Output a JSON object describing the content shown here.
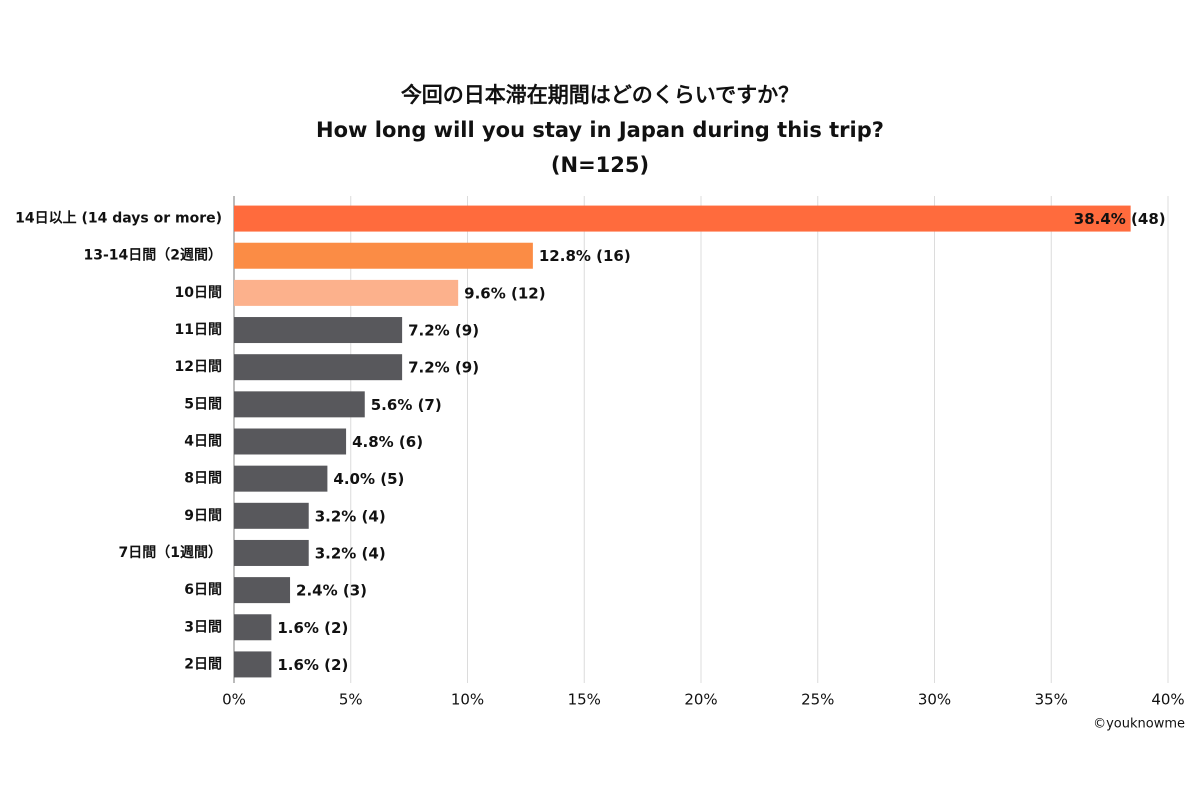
{
  "chart_data": {
    "type": "bar",
    "orientation": "horizontal",
    "title_lines": [
      "今回の日本滞在期間はどのくらいですか？",
      "How long will you stay in Japan during this trip?",
      "(N=125)"
    ],
    "categories": [
      "14日以上 (14 days or more)",
      "13-14日間（2週間）",
      "10日間",
      "11日間",
      "12日間",
      "5日間",
      "4日間",
      "8日間",
      "9日間",
      "7日間（1週間）",
      "6日間",
      "3日間",
      "2日間"
    ],
    "values": [
      38.4,
      12.8,
      9.6,
      7.2,
      7.2,
      5.6,
      4.8,
      4.0,
      3.2,
      3.2,
      2.4,
      1.6,
      1.6
    ],
    "value_labels": [
      "38.4% (48)",
      "12.8% (16)",
      "9.6% (12)",
      "7.2% (9)",
      "7.2% (9)",
      "5.6% (7)",
      "4.8% (6)",
      "4.0% (5)",
      "3.2% (4)",
      "3.2% (4)",
      "2.4% (3)",
      "1.6% (2)",
      "1.6% (2)"
    ],
    "colors": [
      "#ff6b3d",
      "#fb8c45",
      "#fcb18c",
      "#58585c",
      "#58585c",
      "#58585c",
      "#58585c",
      "#58585c",
      "#58585c",
      "#58585c",
      "#58585c",
      "#58585c",
      "#58585c"
    ],
    "xlim": [
      0,
      40
    ],
    "xticks": [
      {
        "value": 0,
        "label": "0%"
      },
      {
        "value": 5,
        "label": "5%"
      },
      {
        "value": 10,
        "label": "10%"
      },
      {
        "value": 15,
        "label": "15%"
      },
      {
        "value": 20,
        "label": "20%"
      },
      {
        "value": 25,
        "label": "25%"
      },
      {
        "value": 30,
        "label": "30%"
      },
      {
        "value": 35,
        "label": "35%"
      },
      {
        "value": 40,
        "label": "40%"
      }
    ],
    "grid": true,
    "source": "©youknowme"
  }
}
